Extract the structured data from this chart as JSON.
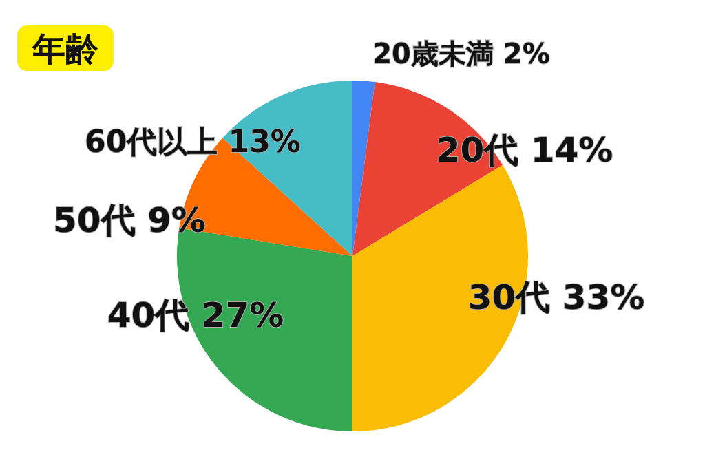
{
  "chart_data": {
    "type": "pie",
    "title": "年齢",
    "categories": [
      "20歳未満",
      "20代",
      "30代",
      "40代",
      "50代",
      "60代以上"
    ],
    "values": [
      2,
      14,
      33,
      27,
      9,
      13
    ],
    "value_labels": [
      "2%",
      "14%",
      "33%",
      "27%",
      "9%",
      "13%"
    ],
    "colors": [
      "#4285f4",
      "#ea4335",
      "#fbbc04",
      "#34a853",
      "#ff6d01",
      "#46bdc6"
    ],
    "legend": false
  }
}
